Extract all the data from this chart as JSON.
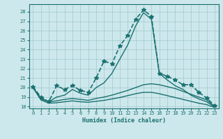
{
  "xlabel": "Humidex (Indice chaleur)",
  "xlim": [
    -0.5,
    23.5
  ],
  "ylim": [
    17.8,
    28.8
  ],
  "yticks": [
    18,
    19,
    20,
    21,
    22,
    23,
    24,
    25,
    26,
    27,
    28
  ],
  "xticks": [
    0,
    1,
    2,
    3,
    4,
    5,
    6,
    7,
    8,
    9,
    10,
    11,
    12,
    13,
    14,
    15,
    16,
    17,
    18,
    19,
    20,
    21,
    22,
    23
  ],
  "bg_color": "#cde8ec",
  "grid_color": "#a0c8cc",
  "line_color": "#1a7070",
  "series": [
    {
      "x": [
        0,
        1,
        2,
        3,
        4,
        5,
        6,
        7,
        8,
        9,
        10,
        11,
        12,
        13,
        14,
        15,
        16,
        17,
        18,
        19,
        20,
        21,
        22,
        23
      ],
      "y": [
        20.1,
        19.0,
        18.5,
        20.2,
        19.8,
        20.2,
        19.7,
        19.5,
        21.0,
        22.8,
        22.5,
        24.4,
        25.5,
        27.2,
        28.2,
        27.5,
        21.5,
        21.2,
        20.8,
        20.3,
        20.3,
        19.5,
        18.9,
        18.1
      ],
      "marker": "*",
      "lw": 1.2,
      "ms": 4,
      "ls": "--"
    },
    {
      "x": [
        0,
        1,
        2,
        3,
        4,
        5,
        6,
        7,
        8,
        9,
        10,
        11,
        12,
        13,
        14,
        15,
        16,
        17,
        18,
        19,
        20,
        21,
        22,
        23
      ],
      "y": [
        20.0,
        18.9,
        18.5,
        19.0,
        19.2,
        19.8,
        19.4,
        19.2,
        20.0,
        20.5,
        21.5,
        23.0,
        24.5,
        26.5,
        27.9,
        27.2,
        21.5,
        20.8,
        20.2,
        19.8,
        19.2,
        18.8,
        18.5,
        17.95
      ],
      "marker": "None",
      "lw": 1.0,
      "ms": 0,
      "ls": "-"
    },
    {
      "x": [
        0,
        1,
        2,
        3,
        4,
        5,
        6,
        7,
        8,
        9,
        10,
        11,
        12,
        13,
        14,
        15,
        16,
        17,
        18,
        19,
        20,
        21,
        22,
        23
      ],
      "y": [
        20.0,
        18.8,
        18.5,
        18.6,
        18.75,
        18.85,
        18.75,
        18.65,
        18.85,
        19.0,
        19.2,
        19.45,
        19.7,
        20.0,
        20.3,
        20.4,
        20.3,
        20.1,
        19.9,
        19.6,
        19.3,
        19.0,
        18.7,
        18.0
      ],
      "marker": "None",
      "lw": 1.0,
      "ms": 0,
      "ls": "-"
    },
    {
      "x": [
        0,
        1,
        2,
        3,
        4,
        5,
        6,
        7,
        8,
        9,
        10,
        11,
        12,
        13,
        14,
        15,
        16,
        17,
        18,
        19,
        20,
        21,
        22,
        23
      ],
      "y": [
        20.0,
        18.7,
        18.35,
        18.4,
        18.5,
        18.6,
        18.5,
        18.45,
        18.55,
        18.65,
        18.8,
        18.95,
        19.15,
        19.35,
        19.5,
        19.5,
        19.35,
        19.15,
        18.95,
        18.75,
        18.55,
        18.35,
        18.2,
        17.9
      ],
      "marker": "None",
      "lw": 1.0,
      "ms": 0,
      "ls": "-"
    }
  ]
}
